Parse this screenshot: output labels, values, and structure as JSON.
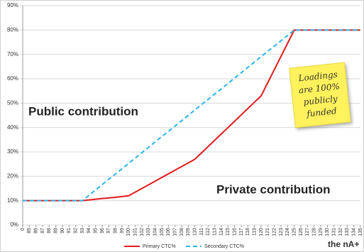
{
  "chart_data": {
    "type": "line",
    "categories": [
      "0",
      "85",
      "86",
      "87",
      "88",
      "89",
      "90",
      "91",
      "92",
      "93",
      "94",
      "95",
      "96",
      "97",
      "98",
      "99",
      "100",
      "101",
      "102",
      "103",
      "104",
      "105",
      "106",
      "107",
      "108",
      "109",
      "110",
      "111",
      "112",
      "113",
      "114",
      "115",
      "116",
      "117",
      "118",
      "119",
      "120",
      "121",
      "122",
      "123",
      "124",
      "125",
      "126",
      "127",
      "128",
      "129",
      "130",
      "131",
      "132",
      "133",
      "134",
      "135"
    ],
    "series": [
      {
        "name": "Primary CTC%",
        "color": "#e31a1c",
        "dash": false,
        "values": [
          10,
          10,
          10,
          10,
          10,
          10,
          10,
          10,
          10,
          10,
          10.3,
          10.6,
          10.9,
          11.1,
          11.4,
          11.7,
          12,
          13.5,
          15,
          16.5,
          18,
          19.5,
          21,
          22.5,
          24,
          25.5,
          27,
          29.6,
          32.2,
          34.8,
          37.4,
          40,
          42.6,
          45.2,
          47.8,
          50.4,
          53,
          58.4,
          63.8,
          69.2,
          74.6,
          80,
          80,
          80,
          80,
          80,
          80,
          80,
          80,
          80,
          80,
          80
        ]
      },
      {
        "name": "Secondary CTC%",
        "color": "#29b6e8",
        "dash": true,
        "values": [
          10,
          10,
          10,
          10,
          10,
          10,
          10,
          10,
          10,
          10,
          12.2,
          14.4,
          16.6,
          18.8,
          20.9,
          23.1,
          25.3,
          27.5,
          29.7,
          31.9,
          34.1,
          36.3,
          38.4,
          40.6,
          42.8,
          45,
          47.2,
          49.4,
          51.6,
          53.8,
          55.9,
          58.1,
          60.3,
          62.5,
          64.7,
          66.9,
          69.1,
          71.3,
          73.4,
          75.6,
          77.8,
          80,
          80,
          80,
          80,
          80,
          80,
          80,
          80,
          80,
          80,
          80
        ]
      }
    ],
    "ylim": [
      0,
      90
    ],
    "yticks": [
      {
        "value": 0,
        "label": "0%"
      },
      {
        "value": 10,
        "label": "10%"
      },
      {
        "value": 20,
        "label": "20%"
      },
      {
        "value": 30,
        "label": "30%"
      },
      {
        "value": 40,
        "label": "40%"
      },
      {
        "value": 50,
        "label": "50%"
      },
      {
        "value": 60,
        "label": "60%"
      },
      {
        "value": 70,
        "label": "70%"
      },
      {
        "value": 80,
        "label": "80%"
      },
      {
        "value": 90,
        "label": "90%"
      }
    ],
    "grid": true,
    "annotations": {
      "public": "Public contribution",
      "private": "Private contribution",
      "note": [
        "Loadings",
        "are 100%",
        "publicly",
        "funded"
      ]
    },
    "logo": "the nA+"
  }
}
